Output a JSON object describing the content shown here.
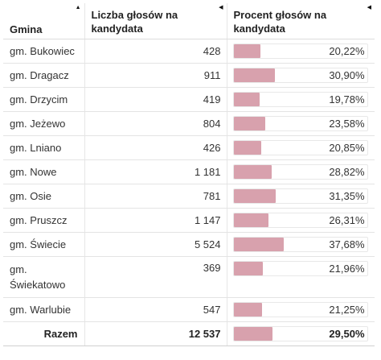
{
  "table": {
    "headers": {
      "gmina": "Gmina",
      "liczba": "Liczba głosów na kandydata",
      "procent": "Procent głosów na kandydata"
    },
    "sort_icons": [
      "sort-up-icon",
      "sort-left-icon",
      "sort-left-icon"
    ],
    "rows": [
      {
        "gmina": "gm. Bukowiec",
        "liczba": "428",
        "procent": "20,22%",
        "share": 20.22
      },
      {
        "gmina": "gm. Dragacz",
        "liczba": "911",
        "procent": "30,90%",
        "share": 30.9
      },
      {
        "gmina": "gm. Drzycim",
        "liczba": "419",
        "procent": "19,78%",
        "share": 19.78
      },
      {
        "gmina": "gm. Jeżewo",
        "liczba": "804",
        "procent": "23,58%",
        "share": 23.58
      },
      {
        "gmina": "gm. Lniano",
        "liczba": "426",
        "procent": "20,85%",
        "share": 20.85
      },
      {
        "gmina": "gm. Nowe",
        "liczba": "1 181",
        "procent": "28,82%",
        "share": 28.82
      },
      {
        "gmina": "gm. Osie",
        "liczba": "781",
        "procent": "31,35%",
        "share": 31.35
      },
      {
        "gmina": "gm. Pruszcz",
        "liczba": "1 147",
        "procent": "26,31%",
        "share": 26.31
      },
      {
        "gmina": "gm. Świecie",
        "liczba": "5 524",
        "procent": "37,68%",
        "share": 37.68
      },
      {
        "gmina": "gm. Świekatowo",
        "liczba": "369",
        "procent": "21,96%",
        "share": 21.96
      },
      {
        "gmina": "gm. Warlubie",
        "liczba": "547",
        "procent": "21,25%",
        "share": 21.25
      }
    ],
    "total": {
      "gmina": "Razem",
      "liczba": "12 537",
      "procent": "29,50%",
      "share": 29.5
    }
  },
  "colors": {
    "bar_fill": "#d8a1ad"
  }
}
